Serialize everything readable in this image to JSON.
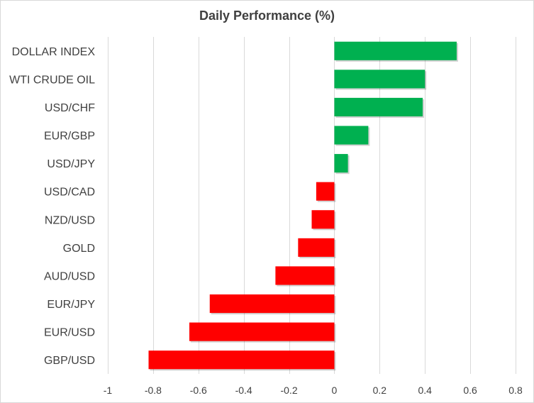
{
  "chart_data": {
    "type": "bar",
    "orientation": "horizontal",
    "title": "Daily Performance (%)",
    "xlabel": "",
    "ylabel": "",
    "xlim": [
      -1,
      0.8
    ],
    "ticks": [
      "-1",
      "-0.8",
      "-0.6",
      "-0.4",
      "-0.2",
      "0",
      "0.2",
      "0.4",
      "0.6",
      "0.8"
    ],
    "tick_values": [
      -1,
      -0.8,
      -0.6,
      -0.4,
      -0.2,
      0,
      0.2,
      0.4,
      0.6,
      0.8
    ],
    "categories": [
      "DOLLAR INDEX",
      "WTI CRUDE OIL",
      "USD/CHF",
      "EUR/GBP",
      "USD/JPY",
      "USD/CAD",
      "NZD/USD",
      "GOLD",
      "AUD/USD",
      "EUR/JPY",
      "EUR/USD",
      "GBP/USD"
    ],
    "values": [
      0.54,
      0.4,
      0.39,
      0.15,
      0.06,
      -0.08,
      -0.1,
      -0.16,
      -0.26,
      -0.55,
      -0.64,
      -0.82
    ],
    "grid": true,
    "legend": "none",
    "colors": {
      "positive": "#00b050",
      "negative": "#ff0000",
      "grid": "#d9d9d9",
      "text": "#404040"
    }
  }
}
